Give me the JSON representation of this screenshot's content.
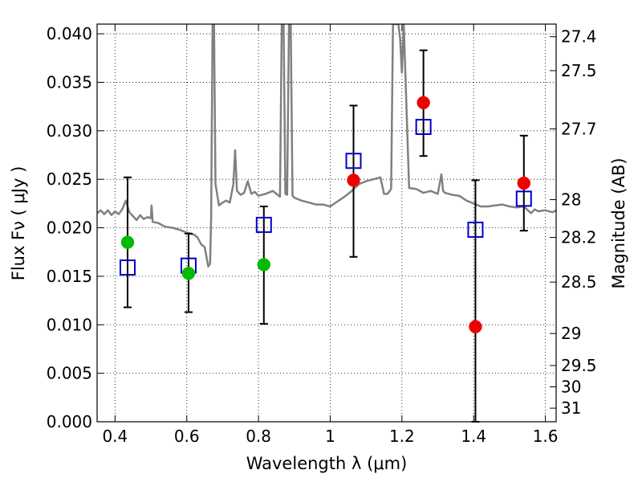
{
  "chart_data": {
    "type": "scatter",
    "title": "",
    "xlabel": "Wavelength  λ (μm)",
    "ylabel": "Flux  Fν  ( μJy )",
    "ylabel_right": "Magnitude (AB)",
    "xlim": [
      0.35,
      1.63
    ],
    "ylim": [
      0.0,
      0.041
    ],
    "grid": true,
    "x_ticks": [
      0.4,
      0.6,
      0.8,
      1.0,
      1.2,
      1.4,
      1.6
    ],
    "x_tick_labels": [
      "0.4",
      "0.6",
      "0.8",
      "1",
      "1.2",
      "1.4",
      "1.6"
    ],
    "y_ticks": [
      0.0,
      0.005,
      0.01,
      0.015,
      0.02,
      0.025,
      0.03,
      0.035,
      0.04
    ],
    "y_tick_labels": [
      "0.000",
      "0.005",
      "0.010",
      "0.015",
      "0.020",
      "0.025",
      "0.030",
      "0.035",
      "0.040"
    ],
    "right_ticks": [
      {
        "label": "27.4",
        "flux": 0.0397
      },
      {
        "label": "27.5",
        "flux": 0.0362
      },
      {
        "label": "27.7",
        "flux": 0.0302
      },
      {
        "label": "28",
        "flux": 0.0229
      },
      {
        "label": "28.2",
        "flux": 0.019
      },
      {
        "label": "28.5",
        "flux": 0.0144
      },
      {
        "label": "29",
        "flux": 0.0091
      },
      {
        "label": "29.5",
        "flux": 0.0058
      },
      {
        "label": "30",
        "flux": 0.0036
      },
      {
        "label": "31",
        "flux": 0.0014
      }
    ],
    "series": [
      {
        "marker": "square",
        "color": "#0000cc",
        "points": [
          {
            "x": 0.435,
            "y": 0.0159,
            "yerr_low": 0.0118,
            "yerr_high": 0.0252
          },
          {
            "x": 0.605,
            "y": 0.0161,
            "yerr_low": 0.0113,
            "yerr_high": 0.0194
          },
          {
            "x": 0.815,
            "y": 0.0203,
            "yerr_low": 0.0101,
            "yerr_high": 0.0222
          },
          {
            "x": 1.065,
            "y": 0.0269,
            "yerr_low": 0.017,
            "yerr_high": 0.0326
          },
          {
            "x": 1.26,
            "y": 0.0304,
            "yerr_low": 0.0274,
            "yerr_high": 0.0383
          },
          {
            "x": 1.405,
            "y": 0.0198,
            "yerr_low": 0.0,
            "yerr_high": 0.0249
          },
          {
            "x": 1.54,
            "y": 0.023,
            "yerr_low": 0.0197,
            "yerr_high": 0.0295
          }
        ]
      },
      {
        "marker": "circle",
        "color": "#00bb00",
        "points": [
          {
            "x": 0.435,
            "y": 0.0185
          },
          {
            "x": 0.605,
            "y": 0.0153
          },
          {
            "x": 0.815,
            "y": 0.0162
          }
        ]
      },
      {
        "marker": "circle",
        "color": "#ee0000",
        "points": [
          {
            "x": 1.065,
            "y": 0.0249
          },
          {
            "x": 1.26,
            "y": 0.0329
          },
          {
            "x": 1.405,
            "y": 0.0098
          },
          {
            "x": 1.54,
            "y": 0.0246
          }
        ]
      },
      {
        "marker": "line",
        "color": "#808080",
        "points": [
          [
            0.35,
            0.0215
          ],
          [
            0.36,
            0.0218
          ],
          [
            0.37,
            0.0214
          ],
          [
            0.38,
            0.0218
          ],
          [
            0.39,
            0.0213
          ],
          [
            0.4,
            0.0217
          ],
          [
            0.41,
            0.0214
          ],
          [
            0.42,
            0.0219
          ],
          [
            0.43,
            0.0228
          ],
          [
            0.44,
            0.0216
          ],
          [
            0.45,
            0.0212
          ],
          [
            0.46,
            0.0208
          ],
          [
            0.47,
            0.0213
          ],
          [
            0.48,
            0.0209
          ],
          [
            0.49,
            0.0211
          ],
          [
            0.5,
            0.021
          ],
          [
            0.502,
            0.0223
          ],
          [
            0.505,
            0.0206
          ],
          [
            0.52,
            0.0205
          ],
          [
            0.54,
            0.0201
          ],
          [
            0.56,
            0.02
          ],
          [
            0.58,
            0.0198
          ],
          [
            0.6,
            0.0195
          ],
          [
            0.62,
            0.0193
          ],
          [
            0.63,
            0.019
          ],
          [
            0.64,
            0.0183
          ],
          [
            0.65,
            0.018
          ],
          [
            0.66,
            0.016
          ],
          [
            0.665,
            0.0163
          ],
          [
            0.668,
            0.021
          ],
          [
            0.672,
            0.041
          ],
          [
            0.676,
            0.041
          ],
          [
            0.68,
            0.0245
          ],
          [
            0.69,
            0.0223
          ],
          [
            0.7,
            0.0226
          ],
          [
            0.71,
            0.0228
          ],
          [
            0.72,
            0.0226
          ],
          [
            0.73,
            0.0245
          ],
          [
            0.735,
            0.028
          ],
          [
            0.74,
            0.0238
          ],
          [
            0.75,
            0.0234
          ],
          [
            0.76,
            0.0236
          ],
          [
            0.77,
            0.0248
          ],
          [
            0.78,
            0.0235
          ],
          [
            0.79,
            0.0237
          ],
          [
            0.8,
            0.0233
          ],
          [
            0.82,
            0.0235
          ],
          [
            0.84,
            0.0238
          ],
          [
            0.86,
            0.0232
          ],
          [
            0.865,
            0.041
          ],
          [
            0.87,
            0.041
          ],
          [
            0.875,
            0.0235
          ],
          [
            0.88,
            0.0234
          ],
          [
            0.885,
            0.041
          ],
          [
            0.89,
            0.041
          ],
          [
            0.895,
            0.0233
          ],
          [
            0.9,
            0.0231
          ],
          [
            0.92,
            0.0228
          ],
          [
            0.94,
            0.0226
          ],
          [
            0.96,
            0.0224
          ],
          [
            0.98,
            0.0224
          ],
          [
            1.0,
            0.0222
          ],
          [
            1.02,
            0.0227
          ],
          [
            1.04,
            0.0232
          ],
          [
            1.06,
            0.0238
          ],
          [
            1.08,
            0.0245
          ],
          [
            1.1,
            0.0248
          ],
          [
            1.12,
            0.025
          ],
          [
            1.14,
            0.0252
          ],
          [
            1.15,
            0.0235
          ],
          [
            1.16,
            0.0235
          ],
          [
            1.17,
            0.024
          ],
          [
            1.175,
            0.041
          ],
          [
            1.19,
            0.041
          ],
          [
            1.195,
            0.0395
          ],
          [
            1.2,
            0.036
          ],
          [
            1.205,
            0.041
          ],
          [
            1.22,
            0.0241
          ],
          [
            1.24,
            0.024
          ],
          [
            1.26,
            0.0236
          ],
          [
            1.28,
            0.0238
          ],
          [
            1.3,
            0.0235
          ],
          [
            1.31,
            0.0255
          ],
          [
            1.315,
            0.0238
          ],
          [
            1.32,
            0.0236
          ],
          [
            1.34,
            0.0234
          ],
          [
            1.36,
            0.0233
          ],
          [
            1.38,
            0.0228
          ],
          [
            1.4,
            0.0225
          ],
          [
            1.42,
            0.0222
          ],
          [
            1.44,
            0.0222
          ],
          [
            1.46,
            0.0223
          ],
          [
            1.48,
            0.0224
          ],
          [
            1.5,
            0.0222
          ],
          [
            1.52,
            0.0221
          ],
          [
            1.54,
            0.0222
          ],
          [
            1.56,
            0.0215
          ],
          [
            1.57,
            0.0219
          ],
          [
            1.58,
            0.0217
          ],
          [
            1.6,
            0.0218
          ],
          [
            1.62,
            0.0216
          ],
          [
            1.63,
            0.0218
          ]
        ]
      }
    ]
  }
}
